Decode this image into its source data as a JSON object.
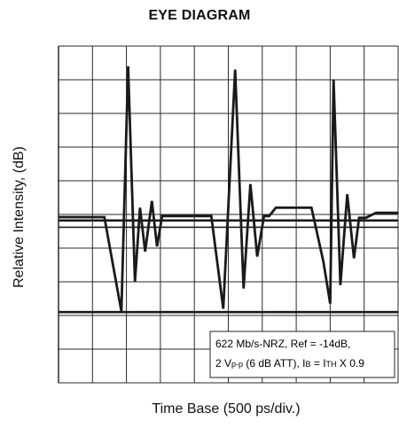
{
  "chart_data": {
    "type": "line",
    "title": "EYE DIAGRAM",
    "xlabel": "Time Base (500 ps/div.)",
    "ylabel": "Relative Intensity, (dB)",
    "grid": true,
    "x_divisions": 10,
    "y_divisions": 10,
    "xlim": [
      0,
      10
    ],
    "ylim": [
      0,
      10
    ],
    "reference_lines": [
      {
        "name": "upper-level",
        "y": 4.82
      },
      {
        "name": "mid-level",
        "y": 4.62
      },
      {
        "name": "lower-level",
        "y": 2.1
      }
    ],
    "series": [
      {
        "x": [
          0,
          1.35,
          1.85,
          2.05,
          2.25,
          2.4,
          2.55,
          2.75,
          2.9,
          3.05,
          3.15,
          3.3,
          4.5,
          4.85,
          5.2,
          5.45,
          5.65,
          5.85,
          6.05,
          6.2,
          6.4,
          6.7,
          7.0,
          7.45,
          7.8,
          8.0,
          8.1,
          8.3,
          8.5,
          8.7,
          8.85,
          9.05,
          9.35,
          10
        ],
        "y": [
          4.92,
          4.92,
          2.12,
          9.4,
          3.0,
          5.2,
          3.9,
          5.4,
          4.05,
          4.95,
          4.95,
          4.95,
          4.95,
          2.2,
          9.3,
          2.8,
          5.9,
          3.75,
          4.95,
          4.95,
          5.2,
          5.2,
          5.2,
          5.2,
          3.6,
          2.35,
          9.0,
          2.9,
          5.6,
          3.7,
          4.9,
          4.9,
          5.05,
          5.05
        ]
      }
    ],
    "annotation": {
      "line1": "622 Mb/s-NRZ, Ref = -14dB,",
      "line2_a": "2 V",
      "line2_b": "p-p",
      "line2_c": " (6 dB ATT), I",
      "line2_d": "B",
      "line2_e": " = I",
      "line2_f": "TH",
      "line2_g": " X 0.9"
    },
    "colors": {
      "trace": "#1a1a1a",
      "grid": "#2a2a2a",
      "background": "#ffffff"
    }
  }
}
